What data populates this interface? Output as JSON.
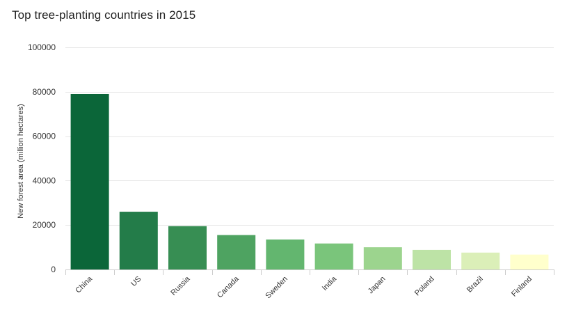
{
  "chart_data": {
    "type": "bar",
    "title": "Top tree-planting countries in 2015",
    "xlabel": "",
    "ylabel": "New forest area (million hectares)",
    "categories": [
      "China",
      "US",
      "Russia",
      "Canada",
      "Sweden",
      "India",
      "Japan",
      "Poland",
      "Brazil",
      "Finland"
    ],
    "values": [
      79000,
      26000,
      19500,
      15500,
      13500,
      11700,
      10000,
      8800,
      7600,
      6700
    ],
    "colors": [
      "#0b6639",
      "#237c49",
      "#378e53",
      "#4ea361",
      "#63b66f",
      "#7ac57b",
      "#9cd48e",
      "#bde3a6",
      "#dbefb8",
      "#ffffcc"
    ],
    "ylim": [
      0,
      100000
    ],
    "yticks": [
      0,
      20000,
      40000,
      60000,
      80000,
      100000
    ],
    "grid": true,
    "legend": "none"
  }
}
